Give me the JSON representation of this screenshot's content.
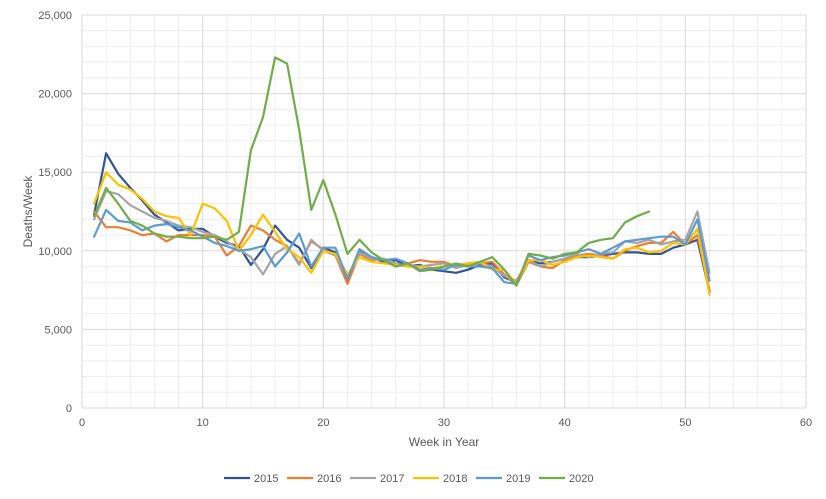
{
  "chart_data": {
    "type": "line",
    "title": "",
    "xlabel": "Week in Year",
    "ylabel": "Deaths/Week",
    "xlim": [
      0,
      60
    ],
    "ylim": [
      0,
      25000
    ],
    "x_ticks": [
      0,
      10,
      20,
      30,
      40,
      50,
      60
    ],
    "y_ticks": [
      0,
      5000,
      10000,
      15000,
      20000,
      25000
    ],
    "x_tick_labels": [
      "0",
      "10",
      "20",
      "30",
      "40",
      "50",
      "60"
    ],
    "y_tick_labels": [
      "0",
      "5,000",
      "10,000",
      "15,000",
      "20,000",
      "25,000"
    ],
    "grid": "major and minor",
    "legend_position": "bottom",
    "series": [
      {
        "name": "2015",
        "color": "#2f5597",
        "x": [
          1,
          2,
          3,
          4,
          5,
          6,
          7,
          8,
          9,
          10,
          11,
          12,
          13,
          14,
          15,
          16,
          17,
          18,
          19,
          20,
          21,
          22,
          23,
          24,
          25,
          26,
          27,
          28,
          29,
          30,
          31,
          32,
          33,
          34,
          35,
          36,
          37,
          38,
          39,
          40,
          41,
          42,
          43,
          44,
          45,
          46,
          47,
          48,
          49,
          50,
          51,
          52
        ],
        "y": [
          12300,
          16200,
          14900,
          14000,
          13200,
          12300,
          11800,
          11300,
          11400,
          11400,
          10900,
          10500,
          10300,
          9100,
          10100,
          11600,
          10700,
          10200,
          8900,
          10200,
          9900,
          8100,
          10000,
          9600,
          9300,
          9400,
          9000,
          9100,
          8800,
          8700,
          8600,
          8800,
          9100,
          9200,
          8300,
          8000,
          9400,
          9200,
          9300,
          9500,
          9600,
          9600,
          9700,
          9800,
          9900,
          9900,
          9800,
          9800,
          10200,
          10400,
          10700,
          7400
        ]
      },
      {
        "name": "2016",
        "color": "#ed7d31",
        "x": [
          1,
          2,
          3,
          4,
          5,
          6,
          7,
          8,
          9,
          10,
          11,
          12,
          13,
          14,
          15,
          16,
          17,
          18,
          19,
          20,
          21,
          22,
          23,
          24,
          25,
          26,
          27,
          28,
          29,
          30,
          31,
          32,
          33,
          34,
          35,
          36,
          37,
          38,
          39,
          40,
          41,
          42,
          43,
          44,
          45,
          46,
          47,
          48,
          49,
          50,
          51,
          52
        ],
        "y": [
          12500,
          11500,
          11500,
          11300,
          11000,
          11100,
          10600,
          11000,
          11000,
          11000,
          10900,
          9700,
          10300,
          11600,
          11300,
          10700,
          10300,
          9200,
          10600,
          10100,
          9700,
          7900,
          9800,
          9400,
          9500,
          9000,
          9200,
          9400,
          9300,
          9300,
          9000,
          9200,
          9200,
          9300,
          8500,
          7800,
          9300,
          9000,
          8900,
          9400,
          9700,
          9800,
          9700,
          9500,
          10000,
          10300,
          10500,
          10500,
          11200,
          10400,
          11000,
          7500
        ]
      },
      {
        "name": "2017",
        "color": "#a5a5a5",
        "x": [
          1,
          2,
          3,
          4,
          5,
          6,
          7,
          8,
          9,
          10,
          11,
          12,
          13,
          14,
          15,
          16,
          17,
          18,
          19,
          20,
          21,
          22,
          23,
          24,
          25,
          26,
          27,
          28,
          29,
          30,
          31,
          32,
          33,
          34,
          35,
          36,
          37,
          38,
          39,
          40,
          41,
          42,
          43,
          44,
          45,
          46,
          47,
          48,
          49,
          50,
          51,
          52
        ],
        "y": [
          12000,
          13800,
          13600,
          12900,
          12500,
          12100,
          11900,
          11600,
          11500,
          11200,
          11000,
          10600,
          10100,
          9600,
          8500,
          9800,
          10300,
          9100,
          10700,
          10000,
          9700,
          8300,
          9900,
          9500,
          9500,
          9200,
          9000,
          9000,
          9100,
          9200,
          8900,
          9100,
          9200,
          9000,
          8400,
          8100,
          9400,
          9000,
          9300,
          9500,
          9800,
          9600,
          9800,
          9900,
          10600,
          10500,
          10700,
          10400,
          10600,
          10700,
          12500,
          8600
        ]
      },
      {
        "name": "2018",
        "color": "#ffc000",
        "x": [
          1,
          2,
          3,
          4,
          5,
          6,
          7,
          8,
          9,
          10,
          11,
          12,
          13,
          14,
          15,
          16,
          17,
          18,
          19,
          20,
          21,
          22,
          23,
          24,
          25,
          26,
          27,
          28,
          29,
          30,
          31,
          32,
          33,
          34,
          35,
          36,
          37,
          38,
          39,
          40,
          41,
          42,
          43,
          44,
          45,
          46,
          47,
          48,
          49,
          50,
          51,
          52
        ],
        "y": [
          13000,
          15000,
          14200,
          13900,
          13300,
          12500,
          12200,
          12100,
          11000,
          13000,
          12700,
          11900,
          10000,
          11000,
          12300,
          11200,
          10100,
          9600,
          8600,
          10000,
          9800,
          8500,
          9600,
          9300,
          9200,
          9100,
          9000,
          9000,
          8900,
          9000,
          9100,
          9200,
          9300,
          8800,
          8800,
          7900,
          9400,
          9400,
          9100,
          9300,
          9600,
          9700,
          9600,
          9500,
          10100,
          10200,
          9900,
          10000,
          10500,
          10400,
          11400,
          7200
        ]
      },
      {
        "name": "2019",
        "color": "#5b9bd5",
        "x": [
          1,
          2,
          3,
          4,
          5,
          6,
          7,
          8,
          9,
          10,
          11,
          12,
          13,
          14,
          15,
          16,
          17,
          18,
          19,
          20,
          21,
          22,
          23,
          24,
          25,
          26,
          27,
          28,
          29,
          30,
          31,
          32,
          33,
          34,
          35,
          36,
          37,
          38,
          39,
          40,
          41,
          42,
          43,
          44,
          45,
          46,
          47,
          48,
          49,
          50,
          51,
          52
        ],
        "y": [
          10900,
          12600,
          11900,
          11800,
          11300,
          11600,
          11700,
          11500,
          11300,
          10900,
          10500,
          10300,
          10000,
          10100,
          10300,
          9000,
          9900,
          11100,
          9000,
          10200,
          10200,
          8200,
          10100,
          9600,
          9400,
          9500,
          9200,
          8800,
          8900,
          8800,
          9100,
          9000,
          9000,
          8900,
          8000,
          7900,
          9700,
          9400,
          9600,
          9700,
          9900,
          10100,
          9800,
          10200,
          10600,
          10700,
          10800,
          10900,
          10900,
          10400,
          12000,
          8100
        ]
      },
      {
        "name": "2020",
        "color": "#70ad47",
        "x": [
          1,
          2,
          3,
          4,
          5,
          6,
          7,
          8,
          9,
          10,
          11,
          12,
          13,
          14,
          15,
          16,
          17,
          18,
          19,
          20,
          21,
          22,
          23,
          24,
          25,
          26,
          27,
          28,
          29,
          30,
          31,
          32,
          33,
          34,
          35,
          36,
          37,
          38,
          39,
          40,
          41,
          42,
          43,
          44,
          45,
          46,
          47
        ],
        "y": [
          12200,
          14000,
          13000,
          11900,
          11600,
          11100,
          10900,
          10900,
          10800,
          10800,
          10900,
          10700,
          11200,
          16400,
          18500,
          22300,
          21900,
          17700,
          12600,
          14500,
          12300,
          9800,
          10700,
          9900,
          9400,
          9000,
          9200,
          8700,
          8800,
          9000,
          9200,
          9000,
          9300,
          9600,
          8800,
          7800,
          9800,
          9700,
          9500,
          9800,
          9900,
          10500,
          10700,
          10800,
          11800,
          12200,
          12500
        ]
      }
    ]
  }
}
